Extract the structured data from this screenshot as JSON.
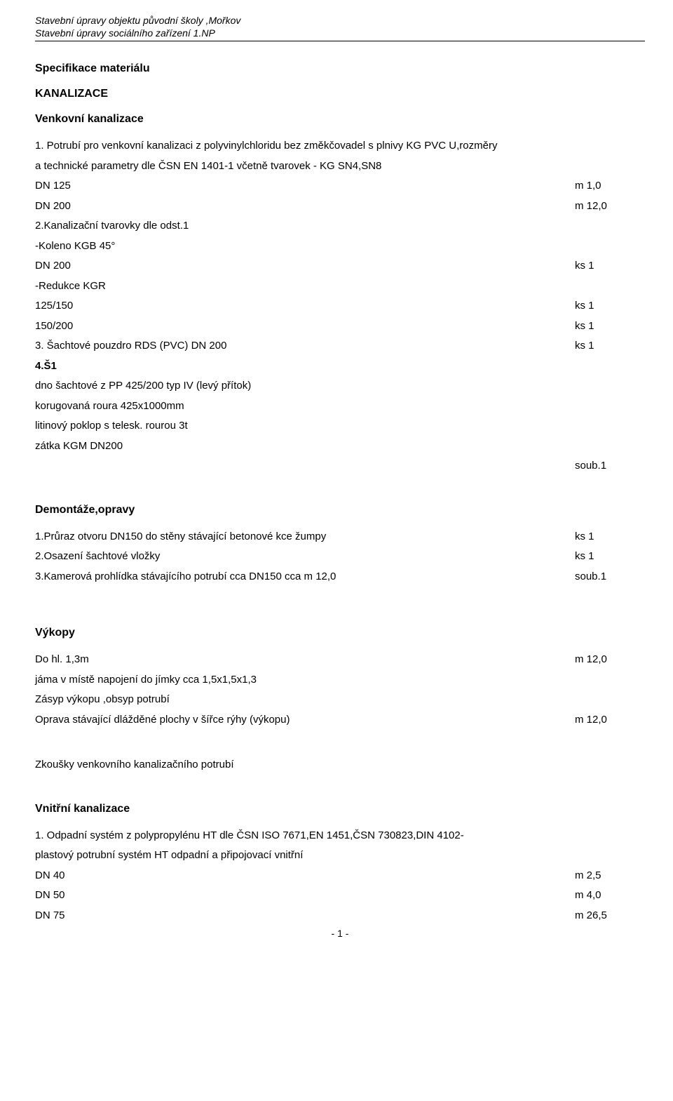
{
  "header": {
    "line1": "Stavební úpravy objektu původní školy ,Mořkov",
    "line2": "Stavební úpravy sociálního zařízení 1.NP"
  },
  "title": "Specifikace   materiálu",
  "s1": {
    "title": "KANALIZACE",
    "sub1": {
      "title": "Venkovní kanalizace",
      "item1_line1": "1. Potrubí pro venkovní kanalizaci z polyvinylchloridu  bez změkčovadel s plnivy KG PVC U,rozměry",
      "item1_line2": "a technické parametry dle ČSN EN 1401-1 včetně tvarovek - KG SN4,SN8",
      "rows1": [
        {
          "label": "DN 125",
          "value": "m 1,0"
        },
        {
          "label": "DN 200",
          "value": "m 12,0"
        }
      ],
      "item2": "2.Kanalizační tvarovky dle odst.1",
      "item2a": "-Koleno KGB 45°",
      "rows2": [
        {
          "label": "DN 200",
          "value": "ks 1"
        }
      ],
      "item2b": "-Redukce KGR",
      "rows3": [
        {
          "label": "125/150",
          "value": "ks 1"
        },
        {
          "label": "150/200",
          "value": "ks 1"
        }
      ],
      "item3": {
        "label": "3. Šachtové pouzdro RDS (PVC) DN 200",
        "value": "ks 1"
      },
      "item4_title": "4.Š1",
      "item4_lines": [
        "dno šachtové z PP 425/200 typ IV (levý přítok)",
        "korugovaná roura 425x1000mm",
        "litinový poklop s telesk. rourou 3t",
        "zátka KGM DN200"
      ],
      "item4_value": "soub.1"
    },
    "sub2": {
      "title": "Demontáže,opravy",
      "rows": [
        {
          "label": "1.Průraz otvoru DN150 do stěny stávající betonové kce žumpy",
          "value": "ks 1"
        },
        {
          "label": "2.Osazení šachtové vložky",
          "value": "ks 1"
        },
        {
          "label": "3.Kamerová prohlídka stávajícího potrubí cca DN150 cca m 12,0",
          "value": "soub.1"
        }
      ]
    },
    "sub3": {
      "title": "Výkopy",
      "row1": {
        "label": "Do hl. 1,3m",
        "value": "m 12,0"
      },
      "lines": [
        "jáma v místě napojení do jímky cca 1,5x1,5x1,3",
        "Zásyp výkopu ,obsyp potrubí"
      ],
      "row2": {
        "label": "Oprava stávající dlážděné plochy v šířce rýhy (výkopu)",
        "value": "m 12,0"
      }
    },
    "sub4": {
      "line": "Zkoušky venkovního kanalizačního potrubí"
    },
    "sub5": {
      "title": "Vnitřní kanalizace",
      "item1_line1": "1. Odpadní systém z polypropylénu HT dle ČSN ISO 7671,EN 1451,ČSN 730823,DIN 4102-",
      "item1_line2": "plastový potrubní systém HT odpadní a připojovací vnitřní",
      "rows": [
        {
          "label": "DN 40",
          "value": "m 2,5"
        },
        {
          "label": "DN 50",
          "value": "m 4,0"
        },
        {
          "label": "DN 75",
          "value": "m 26,5"
        }
      ]
    }
  },
  "footer": "- 1 -"
}
